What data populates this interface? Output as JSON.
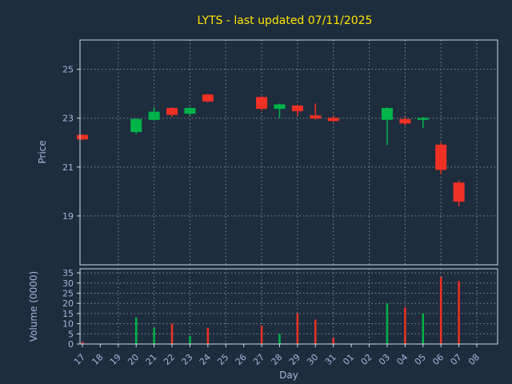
{
  "chart_data": {
    "type": "candlestick",
    "title": "LYTS - last updated 07/11/2025",
    "xlabel": "Day",
    "ylabel": "Price",
    "ylabel2": "Volume (0000)",
    "x_categories": [
      "17",
      "18",
      "19",
      "20",
      "21",
      "22",
      "23",
      "24",
      "25",
      "26",
      "27",
      "28",
      "29",
      "30",
      "31",
      "01",
      "02",
      "03",
      "04",
      "05",
      "06",
      "07",
      "08"
    ],
    "price_ylim": [
      17.0,
      26.2
    ],
    "price_ticks": [
      19,
      21,
      23,
      25
    ],
    "volume_ylim": [
      0,
      37
    ],
    "volume_ticks": [
      0,
      5,
      10,
      15,
      20,
      25,
      30,
      35
    ],
    "grid": true,
    "legend": "none",
    "colors": {
      "background": "#1e2d3d",
      "up": "#00b44a",
      "down": "#ee3124",
      "grid": "#ffffff",
      "spine": "#cfd8e3",
      "text": "#a9b3dd",
      "title": "#ffe400"
    },
    "candles": [
      {
        "day": "17",
        "open": 22.3,
        "high": 22.35,
        "low": 22.1,
        "close": 22.15,
        "volume": 1
      },
      {
        "day": "20",
        "open": 22.45,
        "high": 23.0,
        "low": 22.35,
        "close": 22.95,
        "volume": 13
      },
      {
        "day": "21",
        "open": 22.95,
        "high": 23.45,
        "low": 22.9,
        "close": 23.25,
        "volume": 8
      },
      {
        "day": "22",
        "open": 23.4,
        "high": 23.45,
        "low": 23.05,
        "close": 23.15,
        "volume": 10
      },
      {
        "day": "23",
        "open": 23.2,
        "high": 23.45,
        "low": 23.1,
        "close": 23.4,
        "volume": 4
      },
      {
        "day": "24",
        "open": 23.95,
        "high": 24.0,
        "low": 23.65,
        "close": 23.7,
        "volume": 8
      },
      {
        "day": "27",
        "open": 23.85,
        "high": 23.9,
        "low": 23.3,
        "close": 23.4,
        "volume": 9
      },
      {
        "day": "28",
        "open": 23.4,
        "high": 23.6,
        "low": 23.0,
        "close": 23.55,
        "volume": 5
      },
      {
        "day": "29",
        "open": 23.5,
        "high": 23.55,
        "low": 23.1,
        "close": 23.3,
        "volume": 15
      },
      {
        "day": "30",
        "open": 23.1,
        "high": 23.6,
        "low": 22.95,
        "close": 23.0,
        "volume": 12
      },
      {
        "day": "31",
        "open": 23.0,
        "high": 23.1,
        "low": 22.85,
        "close": 22.9,
        "volume": 3
      },
      {
        "day": "03",
        "open": 22.95,
        "high": 23.45,
        "low": 21.9,
        "close": 23.4,
        "volume": 20
      },
      {
        "day": "04",
        "open": 22.95,
        "high": 23.05,
        "low": 22.7,
        "close": 22.8,
        "volume": 18
      },
      {
        "day": "05",
        "open": 22.95,
        "high": 23.05,
        "low": 22.6,
        "close": 23.0,
        "volume": 15
      },
      {
        "day": "06",
        "open": 21.9,
        "high": 22.0,
        "low": 20.7,
        "close": 20.9,
        "volume": 33
      },
      {
        "day": "07",
        "open": 20.35,
        "high": 20.45,
        "low": 19.4,
        "close": 19.6,
        "volume": 31
      }
    ]
  }
}
